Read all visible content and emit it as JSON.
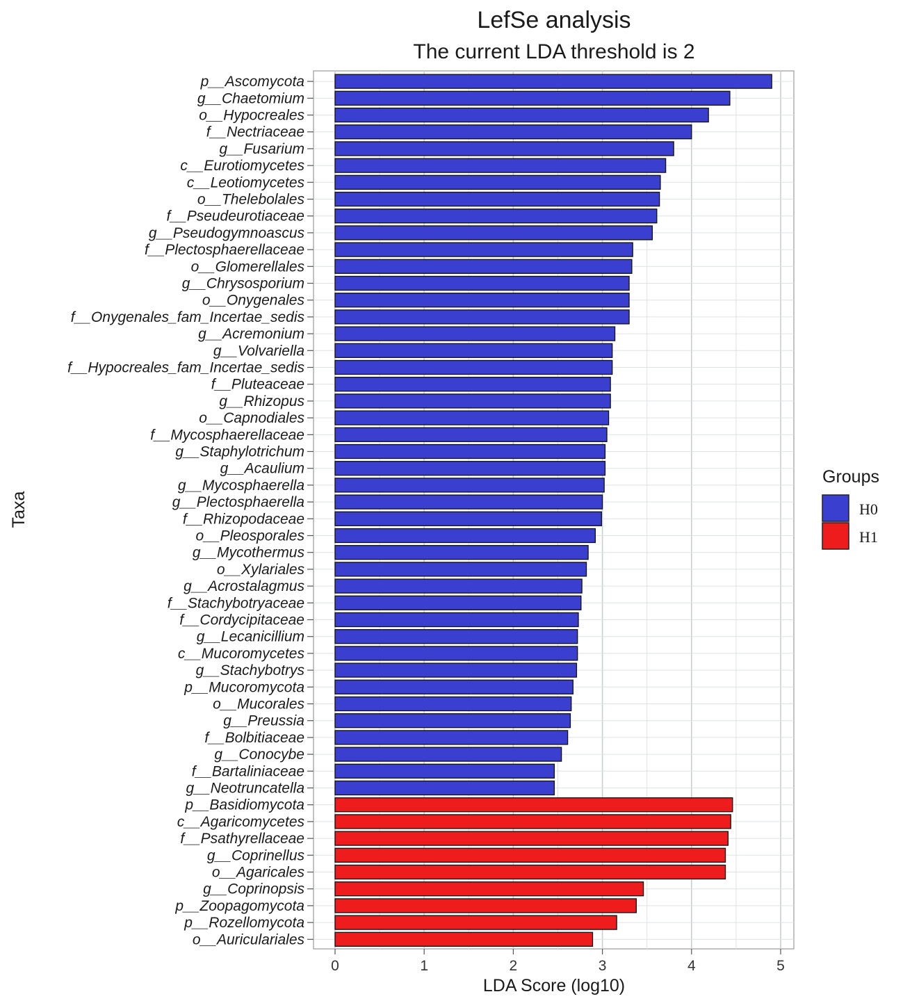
{
  "chart_data": {
    "type": "bar",
    "orientation": "horizontal",
    "title": "LefSe analysis",
    "subtitle": "The current LDA threshold is 2",
    "xlabel": "LDA Score (log10)",
    "ylabel": "Taxa",
    "xlim": [
      0,
      5.15
    ],
    "x_ticks": [
      "0",
      "1",
      "2",
      "3",
      "4",
      "5"
    ],
    "grid": true,
    "legend": {
      "title": "Groups",
      "position": "right",
      "entries": [
        {
          "name": "H0",
          "color": "#3a3fcf"
        },
        {
          "name": "H1",
          "color": "#ee1c1c"
        }
      ]
    },
    "categories": [
      "p__Ascomycota",
      "g__Chaetomium",
      "o__Hypocreales",
      "f__Nectriaceae",
      "g__Fusarium",
      "c__Eurotiomycetes",
      "c__Leotiomycetes",
      "o__Thelebolales",
      "f__Pseudeurotiaceae",
      "g__Pseudogymnoascus",
      "f__Plectosphaerellaceae",
      "o__Glomerellales",
      "g__Chrysosporium",
      "o__Onygenales",
      "f__Onygenales_fam_Incertae_sedis",
      "g__Acremonium",
      "g__Volvariella",
      "f__Hypocreales_fam_Incertae_sedis",
      "f__Pluteaceae",
      "g__Rhizopus",
      "o__Capnodiales",
      "f__Mycosphaerellaceae",
      "g__Staphylotrichum",
      "g__Acaulium",
      "g__Mycosphaerella",
      "g__Plectosphaerella",
      "f__Rhizopodaceae",
      "o__Pleosporales",
      "g__Mycothermus",
      "o__Xylariales",
      "g__Acrostalagmus",
      "f__Stachybotryaceae",
      "f__Cordycipitaceae",
      "g__Lecanicillium",
      "c__Mucoromycetes",
      "g__Stachybotrys",
      "p__Mucoromycota",
      "o__Mucorales",
      "g__Preussia",
      "f__Bolbitiaceae",
      "g__Conocybe",
      "f__Bartaliniaceae",
      "g__Neotruncatella",
      "p__Basidiomycota",
      "c__Agaricomycetes",
      "f__Psathyrellaceae",
      "g__Coprinellus",
      "o__Agaricales",
      "g__Coprinopsis",
      "p__Zoopagomycota",
      "p__Rozellomycota",
      "o__Auriculariales"
    ],
    "values": [
      4.9,
      4.43,
      4.19,
      4.0,
      3.8,
      3.71,
      3.65,
      3.64,
      3.61,
      3.56,
      3.34,
      3.33,
      3.3,
      3.3,
      3.3,
      3.14,
      3.11,
      3.11,
      3.09,
      3.09,
      3.07,
      3.05,
      3.03,
      3.03,
      3.02,
      3.0,
      2.99,
      2.92,
      2.84,
      2.82,
      2.77,
      2.76,
      2.73,
      2.72,
      2.72,
      2.71,
      2.67,
      2.65,
      2.64,
      2.61,
      2.54,
      2.46,
      2.46,
      4.46,
      4.44,
      4.41,
      4.38,
      4.38,
      3.46,
      3.38,
      3.16,
      2.89
    ],
    "groups": [
      "H0",
      "H0",
      "H0",
      "H0",
      "H0",
      "H0",
      "H0",
      "H0",
      "H0",
      "H0",
      "H0",
      "H0",
      "H0",
      "H0",
      "H0",
      "H0",
      "H0",
      "H0",
      "H0",
      "H0",
      "H0",
      "H0",
      "H0",
      "H0",
      "H0",
      "H0",
      "H0",
      "H0",
      "H0",
      "H0",
      "H0",
      "H0",
      "H0",
      "H0",
      "H0",
      "H0",
      "H0",
      "H0",
      "H0",
      "H0",
      "H0",
      "H0",
      "H0",
      "H1",
      "H1",
      "H1",
      "H1",
      "H1",
      "H1",
      "H1",
      "H1",
      "H1"
    ]
  }
}
